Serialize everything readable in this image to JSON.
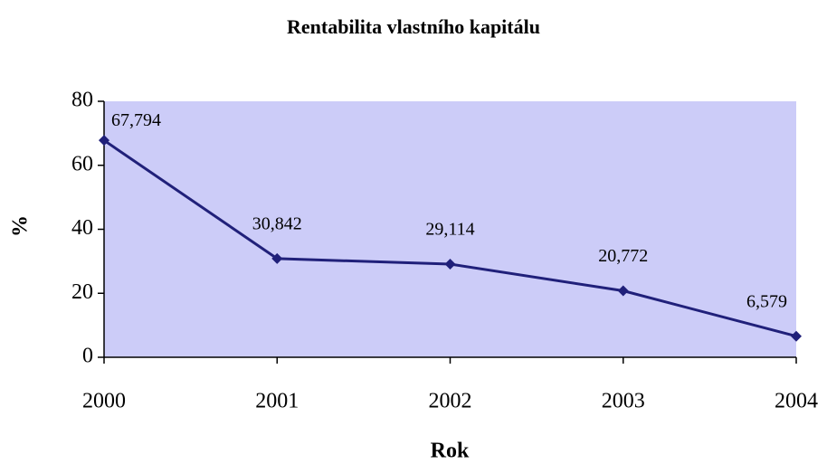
{
  "chart_data": {
    "type": "line",
    "title": "Rentabilita vlastního kapitálu",
    "x_label": "Rok",
    "y_label": "%",
    "x": [
      2000,
      2001,
      2002,
      2003,
      2004
    ],
    "series": [
      {
        "name": "Rentabilita vlastního kapitálu",
        "color": "#20207a",
        "values": [
          67.794,
          30.842,
          29.114,
          20.772,
          6.579
        ],
        "value_labels": [
          "67,794",
          "30,842",
          "29,114",
          "20,772",
          "6,579"
        ]
      }
    ],
    "xlim": [
      2000,
      2004
    ],
    "xticks": [
      2000,
      2001,
      2002,
      2003,
      2004
    ],
    "ylim": [
      0,
      80
    ],
    "yticks": [
      0,
      20,
      40,
      60,
      80
    ],
    "plot_background": "#ccccf8",
    "grid": false
  }
}
